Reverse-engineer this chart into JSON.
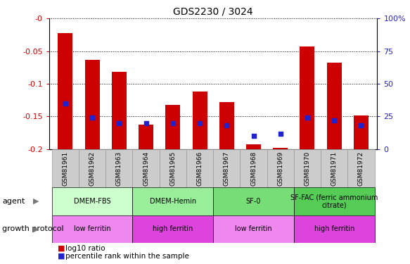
{
  "title": "GDS2230 / 3024",
  "samples": [
    "GSM81961",
    "GSM81962",
    "GSM81963",
    "GSM81964",
    "GSM81965",
    "GSM81966",
    "GSM81967",
    "GSM81968",
    "GSM81969",
    "GSM81970",
    "GSM81971",
    "GSM81972"
  ],
  "log10_ratio": [
    -0.022,
    -0.063,
    -0.082,
    -0.162,
    -0.132,
    -0.112,
    -0.128,
    -0.193,
    -0.198,
    -0.043,
    -0.068,
    -0.148
  ],
  "percentile_rank": [
    35,
    24,
    20,
    20,
    20,
    20,
    18,
    10,
    12,
    24,
    22,
    18
  ],
  "ylim_min": -0.2,
  "ylim_max": 0.0,
  "y_ticks": [
    -0.2,
    -0.15,
    -0.1,
    -0.05,
    0.0
  ],
  "y_tick_labels": [
    "-0.2",
    "-0.15",
    "-0.1",
    "-0.05",
    "-0"
  ],
  "right_y_ticks": [
    0,
    25,
    50,
    75,
    100
  ],
  "right_y_tick_labels": [
    "0",
    "25",
    "50",
    "75",
    "100%"
  ],
  "bar_color": "#cc0000",
  "dot_color": "#2222cc",
  "agent_groups": [
    {
      "label": "DMEM-FBS",
      "start": 0,
      "end": 2,
      "color": "#ccffcc"
    },
    {
      "label": "DMEM-Hemin",
      "start": 3,
      "end": 5,
      "color": "#99ee99"
    },
    {
      "label": "SF-0",
      "start": 6,
      "end": 8,
      "color": "#77dd77"
    },
    {
      "label": "SF-FAC (ferric ammonium\ncitrate)",
      "start": 9,
      "end": 11,
      "color": "#55cc55"
    }
  ],
  "growth_groups": [
    {
      "label": "low ferritin",
      "start": 0,
      "end": 2,
      "color": "#ee88ee"
    },
    {
      "label": "high ferritin",
      "start": 3,
      "end": 5,
      "color": "#dd44dd"
    },
    {
      "label": "low ferritin",
      "start": 6,
      "end": 8,
      "color": "#ee88ee"
    },
    {
      "label": "high ferritin",
      "start": 9,
      "end": 11,
      "color": "#dd44dd"
    }
  ],
  "agent_label": "agent",
  "growth_label": "growth protocol",
  "legend_items": [
    {
      "label": "log10 ratio",
      "color": "#cc0000"
    },
    {
      "label": "percentile rank within the sample",
      "color": "#2222cc"
    }
  ],
  "axis_color_left": "#cc0000",
  "axis_color_right": "#2222cc",
  "tick_bg_color": "#cccccc",
  "bar_width": 0.55
}
